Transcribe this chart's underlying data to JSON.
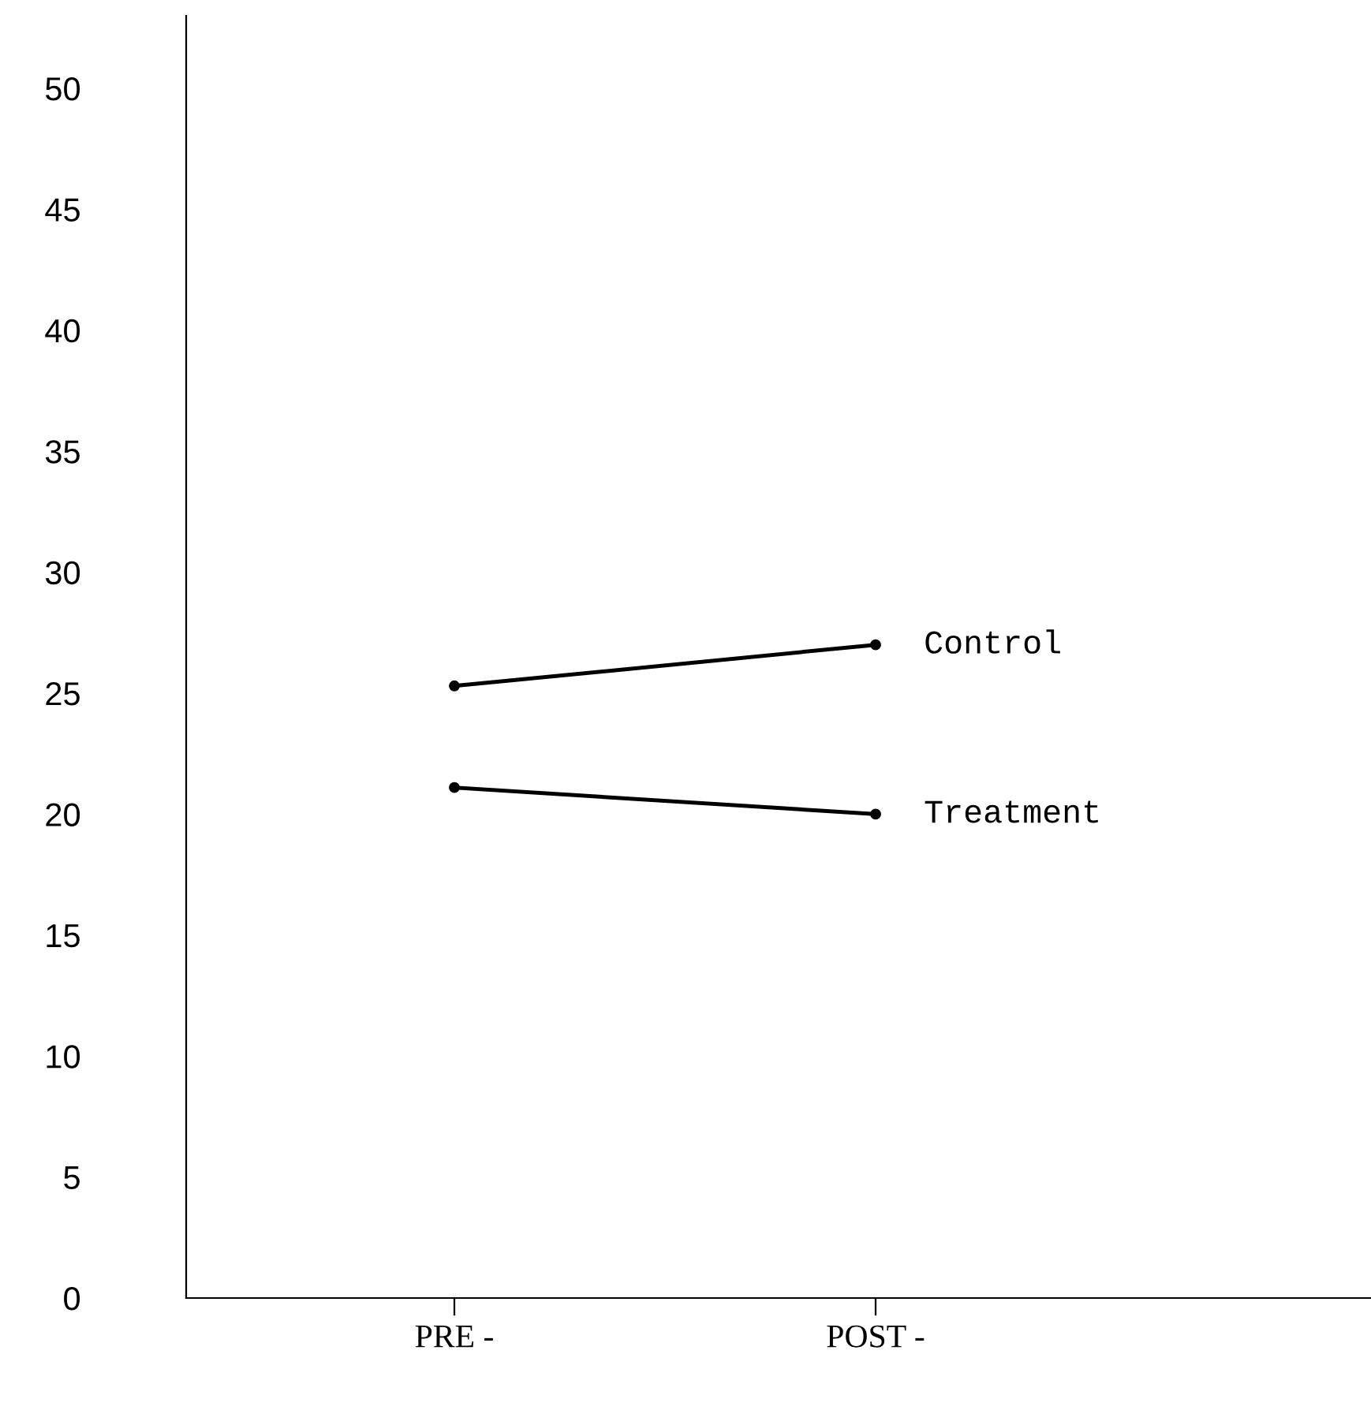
{
  "chart_data": {
    "type": "line",
    "categories": [
      "PRE -",
      "POST -"
    ],
    "series": [
      {
        "name": "Control",
        "color": "#000000",
        "values": [
          25.3,
          27.0
        ]
      },
      {
        "name": "Treatment",
        "color": "#000000",
        "values": [
          21.1,
          20.0
        ]
      }
    ],
    "ylim": [
      0,
      53
    ],
    "yticks": [
      0,
      5,
      10,
      15,
      20,
      25,
      30,
      35,
      40,
      45,
      50
    ],
    "marker": "circle",
    "line_style": "solid",
    "grid": false,
    "legend": false
  }
}
